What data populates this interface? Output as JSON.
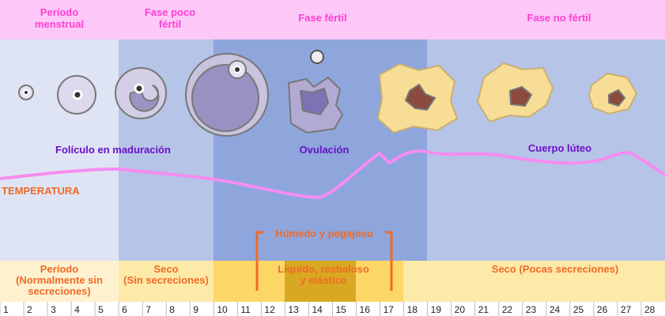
{
  "phases": [
    {
      "lines": [
        "Período",
        "menstrual"
      ]
    },
    {
      "lines": [
        "Fase poco",
        "fértil"
      ]
    },
    {
      "lines": [
        "Fase fértil"
      ]
    },
    {
      "lines": [
        "Fase no fértil"
      ]
    }
  ],
  "stages": [
    "Folículo en maduración",
    "Ovulación",
    "Cuerpo lúteo"
  ],
  "temperature_label": "TEMPERATURA",
  "secretions": {
    "menstrual": [
      "Período",
      "(Normalmente sin",
      "secreciones)"
    ],
    "dry": [
      "Seco",
      "(Sin secreciones)"
    ],
    "wet_sticky": "Húmedo y pegajoso",
    "fertile": [
      "Líquido, resbaloso",
      "y elástico"
    ],
    "late": "Seco (Pocas secreciones)"
  },
  "days": [
    1,
    2,
    3,
    4,
    5,
    6,
    7,
    8,
    9,
    10,
    11,
    12,
    13,
    14,
    15,
    16,
    17,
    18,
    19,
    20,
    21,
    22,
    23,
    24,
    25,
    26,
    27,
    28
  ]
}
